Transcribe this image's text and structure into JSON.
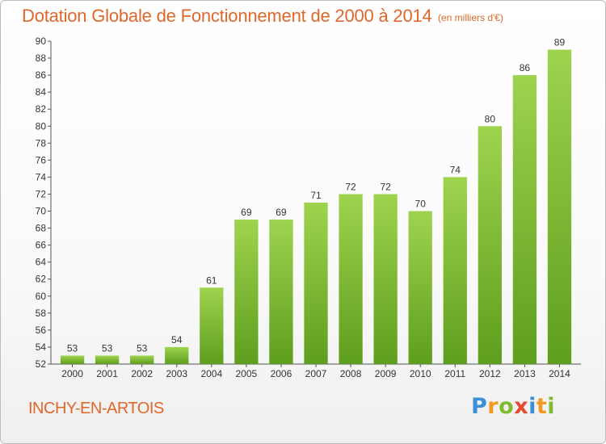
{
  "title": "Dotation Globale de Fonctionnement de 2000 à 2014",
  "subtitle": "(en milliers d'€)",
  "commune": "INCHY-EN-ARTOIS",
  "logo": {
    "letters": [
      "P",
      "r",
      "o",
      "x",
      "i",
      "t",
      "i"
    ],
    "colors": [
      "#3a8fd8",
      "#f39a1e",
      "#7dbb2f",
      "#e8472f",
      "#3a8fd8",
      "#f39a1e",
      "#7dbb2f"
    ]
  },
  "colors": {
    "title": "#e0672a",
    "bar_top": "#9ed34e",
    "bar_bottom": "#5e9e1e",
    "axis_text": "#333333"
  },
  "chart_data": {
    "type": "bar",
    "categories": [
      "2000",
      "2001",
      "2002",
      "2003",
      "2004",
      "2005",
      "2006",
      "2007",
      "2008",
      "2009",
      "2010",
      "2011",
      "2012",
      "2013",
      "2014"
    ],
    "values": [
      53,
      53,
      53,
      54,
      61,
      69,
      69,
      71,
      72,
      72,
      70,
      74,
      80,
      86,
      89
    ],
    "ylim": [
      52,
      90
    ],
    "yticks": [
      52,
      54,
      56,
      58,
      60,
      62,
      64,
      66,
      68,
      70,
      72,
      74,
      76,
      78,
      80,
      82,
      84,
      86,
      88,
      90
    ],
    "grid": false,
    "xlabel": "",
    "ylabel": ""
  }
}
